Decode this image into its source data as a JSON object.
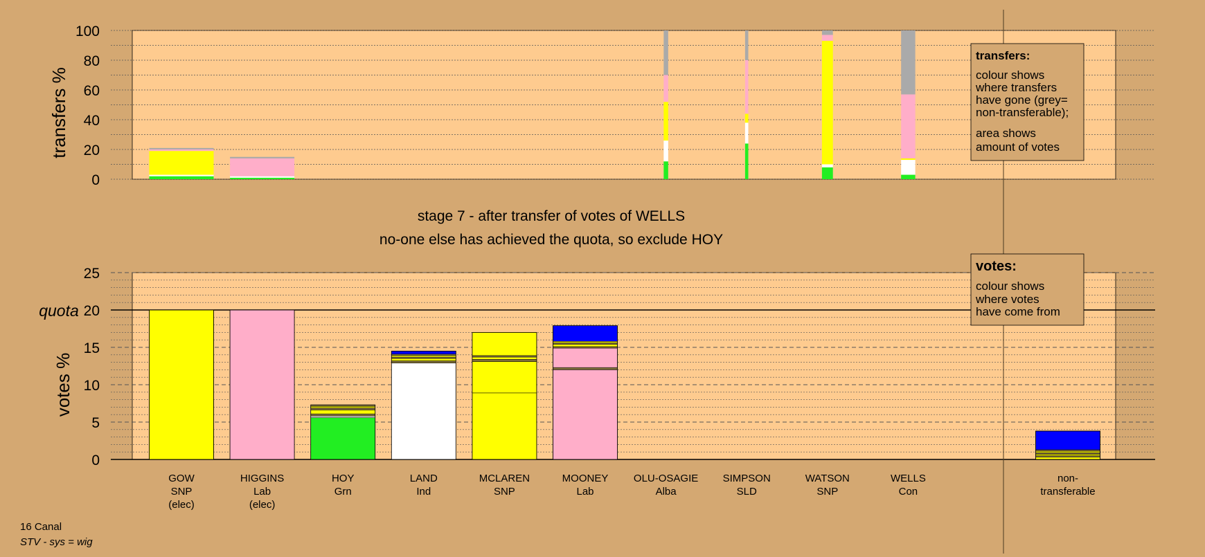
{
  "chart_data": {
    "type": "bar",
    "stage_line1": "stage 7 - after transfer of votes of WELLS",
    "stage_line2": "no-one else has achieved the quota, so exclude HOY",
    "footer_ward": "16 Canal",
    "footer_system": "STV - sys = wig",
    "colors": {
      "panel": "#fecb8f",
      "background": "#d4a872",
      "yellow": "#ffff00",
      "pink": "#ffaec9",
      "green": "#22ee22",
      "white": "#ffffff",
      "blue": "#0000ff",
      "grey": "#aaaaaa",
      "olive": "#80703c"
    },
    "candidates": [
      {
        "name": "GOW",
        "party": "SNP",
        "status": "(elec)"
      },
      {
        "name": "HIGGINS",
        "party": "Lab",
        "status": "(elec)"
      },
      {
        "name": "HOY",
        "party": "Grn",
        "status": ""
      },
      {
        "name": "LAND",
        "party": "Ind",
        "status": ""
      },
      {
        "name": "MCLAREN",
        "party": "SNP",
        "status": ""
      },
      {
        "name": "MOONEY",
        "party": "Lab",
        "status": ""
      },
      {
        "name": "OLU-OSAGIE",
        "party": "Alba",
        "status": ""
      },
      {
        "name": "SIMPSON",
        "party": "SLD",
        "status": ""
      },
      {
        "name": "WATSON",
        "party": "SNP",
        "status": ""
      },
      {
        "name": "WELLS",
        "party": "Con",
        "status": ""
      }
    ],
    "nontransferable_label": [
      "non-",
      "transferable"
    ],
    "transfers": {
      "ylabel": "transfers %",
      "ylim": [
        0,
        100
      ],
      "yticks": [
        0,
        20,
        40,
        60,
        80,
        100
      ],
      "legend": {
        "title": "transfers:",
        "lines1": [
          "colour shows",
          "where transfers",
          "have gone (grey=",
          "non-transferable);"
        ],
        "lines2": [
          "area shows",
          "amount of votes"
        ]
      },
      "bars": [
        {
          "index": 0,
          "width": 1.0,
          "segments": [
            {
              "color": "green",
              "value": 2
            },
            {
              "color": "white",
              "value": 1
            },
            {
              "color": "yellow",
              "value": 16
            },
            {
              "color": "pink",
              "value": 1
            },
            {
              "color": "grey",
              "value": 1
            }
          ]
        },
        {
          "index": 1,
          "width": 1.0,
          "segments": [
            {
              "color": "green",
              "value": 1
            },
            {
              "color": "white",
              "value": 1
            },
            {
              "color": "pink",
              "value": 12
            },
            {
              "color": "grey",
              "value": 1
            }
          ]
        },
        {
          "index": 6,
          "width": 0.07,
          "segments": [
            {
              "color": "green",
              "value": 12
            },
            {
              "color": "white",
              "value": 14
            },
            {
              "color": "yellow",
              "value": 26
            },
            {
              "color": "pink",
              "value": 18
            },
            {
              "color": "grey",
              "value": 30
            }
          ]
        },
        {
          "index": 7,
          "width": 0.05,
          "segments": [
            {
              "color": "green",
              "value": 24
            },
            {
              "color": "white",
              "value": 14
            },
            {
              "color": "yellow",
              "value": 6
            },
            {
              "color": "pink",
              "value": 36
            },
            {
              "color": "grey",
              "value": 20
            }
          ]
        },
        {
          "index": 8,
          "width": 0.17,
          "segments": [
            {
              "color": "green",
              "value": 8
            },
            {
              "color": "white",
              "value": 2
            },
            {
              "color": "yellow",
              "value": 83
            },
            {
              "color": "pink",
              "value": 4
            },
            {
              "color": "grey",
              "value": 3
            }
          ]
        },
        {
          "index": 9,
          "width": 0.22,
          "segments": [
            {
              "color": "green",
              "value": 3
            },
            {
              "color": "white",
              "value": 10
            },
            {
              "color": "yellow",
              "value": 1
            },
            {
              "color": "pink",
              "value": 43
            },
            {
              "color": "grey",
              "value": 43
            }
          ]
        }
      ]
    },
    "votes": {
      "ylabel": "votes %",
      "quota_label": "quota",
      "quota": 20,
      "ylim": [
        0,
        25
      ],
      "yticks": [
        0,
        5,
        10,
        15,
        20,
        25
      ],
      "legend": {
        "title": "votes:",
        "lines": [
          "colour shows",
          "where votes",
          "have come from"
        ]
      },
      "bars": [
        {
          "index": 0,
          "segments": [
            {
              "color": "yellow",
              "value": 20
            }
          ]
        },
        {
          "index": 1,
          "segments": [
            {
              "color": "pink",
              "value": 20
            }
          ]
        },
        {
          "index": 2,
          "segments": [
            {
              "color": "green",
              "value": 5.6
            },
            {
              "color": "white",
              "value": 0.2
            },
            {
              "color": "olive",
              "value": 0.3
            },
            {
              "color": "yellow",
              "value": 0.5
            },
            {
              "color": "olive",
              "value": 0.3
            },
            {
              "color": "yellow",
              "value": 0.2
            },
            {
              "color": "olive",
              "value": 0.2
            }
          ]
        },
        {
          "index": 3,
          "segments": [
            {
              "color": "white",
              "value": 12.9
            },
            {
              "color": "olive",
              "value": 0.3
            },
            {
              "color": "yellow",
              "value": 0.3
            },
            {
              "color": "olive",
              "value": 0.2
            },
            {
              "color": "yellow",
              "value": 0.2
            },
            {
              "color": "olive",
              "value": 0.2
            },
            {
              "color": "blue",
              "value": 0.4
            }
          ]
        },
        {
          "index": 4,
          "segments": [
            {
              "color": "yellow",
              "value": 8.9
            },
            {
              "color": "yellow",
              "value": 4.2
            },
            {
              "color": "olive",
              "value": 0.3
            },
            {
              "color": "yellow",
              "value": 0.3
            },
            {
              "color": "olive",
              "value": 0.2
            },
            {
              "color": "yellow",
              "value": 3.1
            }
          ]
        },
        {
          "index": 5,
          "segments": [
            {
              "color": "pink",
              "value": 12.0
            },
            {
              "color": "olive",
              "value": 0.3
            },
            {
              "color": "pink",
              "value": 2.6
            },
            {
              "color": "olive",
              "value": 0.2
            },
            {
              "color": "yellow",
              "value": 0.3
            },
            {
              "color": "olive",
              "value": 0.2
            },
            {
              "color": "yellow",
              "value": 0.2
            },
            {
              "color": "blue",
              "value": 2.1
            }
          ]
        },
        {
          "index": "nt",
          "segments": [
            {
              "color": "yellow",
              "value": 0.3
            },
            {
              "color": "olive",
              "value": 0.2
            },
            {
              "color": "yellow",
              "value": 0.2
            },
            {
              "color": "olive",
              "value": 0.2
            },
            {
              "color": "yellow",
              "value": 0.2
            },
            {
              "color": "olive",
              "value": 0.2
            },
            {
              "color": "blue",
              "value": 2.5
            }
          ]
        }
      ]
    }
  }
}
